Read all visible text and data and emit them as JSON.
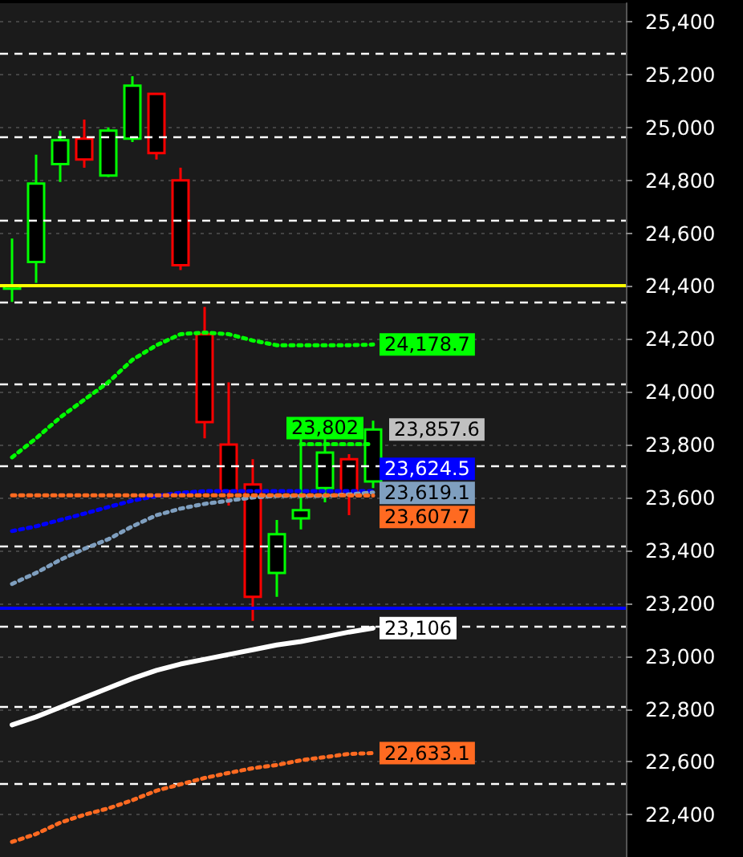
{
  "chart_data": {
    "type": "candlestick",
    "categories": [
      null,
      null,
      null,
      null,
      null,
      null,
      null,
      null,
      null,
      null,
      null,
      null,
      null,
      null,
      null,
      null,
      null,
      null,
      null,
      null,
      null,
      null,
      null,
      null,
      null,
      null
    ],
    "ohlc": [
      [
        24390,
        24580,
        24340,
        24400
      ],
      [
        24491,
        24897,
        24412,
        24788
      ],
      [
        24861,
        24988,
        24794,
        24952
      ],
      [
        24958,
        25030,
        24848,
        24879
      ],
      [
        24818,
        25000,
        24812,
        24988
      ],
      [
        24958,
        25194,
        24945,
        25158
      ],
      [
        25127,
        25127,
        24879,
        24903
      ],
      [
        24800,
        24848,
        24461,
        24479
      ],
      [
        24218,
        24321,
        23824,
        23885
      ],
      [
        23800,
        24036,
        23570,
        23624
      ],
      [
        23649,
        23745,
        23133,
        23224
      ],
      [
        23315,
        23515,
        23224,
        23461
      ],
      [
        23521,
        23824,
        23479,
        23552
      ],
      [
        23636,
        23824,
        23582,
        23770
      ],
      [
        23745,
        23764,
        23533,
        23612
      ],
      [
        23661,
        23891,
        23636,
        23857.6
      ],
      null,
      null,
      null,
      null,
      null,
      null,
      null,
      null,
      null,
      null
    ],
    "colors": [
      "#00ff00",
      "#00ff00",
      "#00ff00",
      "#ff0000",
      "#00ff00",
      "#00ff00",
      "#ff0000",
      "#ff0000",
      "#ff0000",
      "#ff0000",
      "#ff0000",
      "#00ff00",
      "#00ff00",
      "#00ff00",
      "#ff0000",
      "#00ff00",
      null,
      null,
      null,
      null,
      null,
      null,
      null,
      null,
      null,
      null
    ],
    "value_labels": [
      null,
      null,
      null,
      null,
      null,
      null,
      null,
      null,
      null,
      null,
      null,
      null,
      null,
      null,
      null,
      "23,857.6",
      null,
      null,
      null,
      null,
      null,
      null,
      null,
      null,
      null,
      null
    ],
    "series": [
      {
        "type": "line",
        "color": "#00ff00",
        "line_style": "dotted",
        "values": [
          23752,
          23824,
          23903,
          23970,
          24036,
          24121,
          24176,
          24218,
          24224,
          24218,
          24194,
          24176,
          24176,
          24176,
          24176,
          24178.7,
          null,
          null,
          null,
          null,
          null,
          null,
          null,
          null,
          null,
          null
        ],
        "value_labels": [
          null,
          null,
          null,
          null,
          null,
          null,
          null,
          null,
          null,
          null,
          null,
          null,
          null,
          null,
          null,
          "24,178.7",
          null,
          null,
          null,
          null,
          null,
          null,
          null,
          null,
          null,
          null
        ]
      },
      {
        "type": "line",
        "color": "#00ff00",
        "line_style": "dotted",
        "values": [
          null,
          null,
          null,
          null,
          null,
          null,
          null,
          null,
          null,
          null,
          null,
          null,
          23802,
          23802,
          23802,
          23802,
          null,
          null,
          null,
          null,
          null,
          null,
          null,
          null,
          null,
          null
        ],
        "value_labels": [
          null,
          null,
          null,
          null,
          null,
          null,
          null,
          null,
          null,
          null,
          null,
          null,
          null,
          "23,802",
          null,
          null,
          null,
          null,
          null,
          null,
          null,
          null,
          null,
          null,
          null,
          null
        ]
      },
      {
        "type": "line",
        "color": "#0000ff",
        "line_style": "dotted",
        "values": [
          23473,
          23491,
          23515,
          23539,
          23564,
          23588,
          23606,
          23618,
          23624,
          23624,
          23624,
          23624,
          23624,
          23624,
          23624,
          23624.5,
          null,
          null,
          null,
          null,
          null,
          null,
          null,
          null,
          null,
          null
        ],
        "value_labels": [
          null,
          null,
          null,
          null,
          null,
          null,
          null,
          null,
          null,
          null,
          null,
          null,
          null,
          null,
          null,
          "23,624.5",
          null,
          null,
          null,
          null,
          null,
          null,
          null,
          null,
          null,
          null
        ]
      },
      {
        "type": "line",
        "color": "#7f9fbf",
        "line_style": "dotted",
        "values": [
          23273,
          23315,
          23364,
          23406,
          23442,
          23491,
          23533,
          23558,
          23576,
          23588,
          23600,
          23606,
          23606,
          23606,
          23612,
          23619.1,
          null,
          null,
          null,
          null,
          null,
          null,
          null,
          null,
          null,
          null
        ],
        "value_labels": [
          null,
          null,
          null,
          null,
          null,
          null,
          null,
          null,
          null,
          null,
          null,
          null,
          null,
          null,
          null,
          "23,619.1",
          null,
          null,
          null,
          null,
          null,
          null,
          null,
          null,
          null,
          null
        ]
      },
      {
        "type": "line",
        "color": "#ff6a21",
        "line_style": "dotted",
        "values": [
          23608,
          23608,
          23608,
          23608,
          23608,
          23608,
          23608,
          23608,
          23608,
          23608,
          23608,
          23608,
          23608,
          23608,
          23608,
          23607.7,
          null,
          null,
          null,
          null,
          null,
          null,
          null,
          null,
          null,
          null
        ],
        "value_labels": [
          null,
          null,
          null,
          null,
          null,
          null,
          null,
          null,
          null,
          null,
          null,
          null,
          null,
          null,
          null,
          "23,607.7",
          null,
          null,
          null,
          null,
          null,
          null,
          null,
          null,
          null,
          null
        ]
      },
      {
        "type": "line",
        "color": "#ffffff",
        "line_style": "solid",
        "values": [
          22740,
          22770,
          22806,
          22843,
          22879,
          22915,
          22946,
          22970,
          22988,
          23006,
          23024,
          23042,
          23055,
          23073,
          23091,
          23106,
          null,
          null,
          null,
          null,
          null,
          null,
          null,
          null,
          null,
          null
        ],
        "value_labels": [
          null,
          null,
          null,
          null,
          null,
          null,
          null,
          null,
          null,
          null,
          null,
          null,
          null,
          null,
          null,
          "23,106",
          null,
          null,
          null,
          null,
          null,
          null,
          null,
          null,
          null,
          null
        ]
      },
      {
        "type": "line",
        "color": "#ff6a21",
        "line_style": "dotted",
        "values": [
          22297,
          22327,
          22370,
          22400,
          22424,
          22455,
          22491,
          22515,
          22539,
          22558,
          22576,
          22588,
          22606,
          22618,
          22630,
          22633.1,
          null,
          null,
          null,
          null,
          null,
          null,
          null,
          null,
          null,
          null
        ],
        "value_labels": [
          null,
          null,
          null,
          null,
          null,
          null,
          null,
          null,
          null,
          null,
          null,
          null,
          null,
          null,
          null,
          "22,633.1",
          null,
          null,
          null,
          null,
          null,
          null,
          null,
          null,
          null,
          null
        ]
      }
    ],
    "ref_lines": [
      {
        "axis": "y",
        "value": 24400,
        "color": "#ffff00",
        "line_style": "solid"
      },
      {
        "axis": "y",
        "value": 23182,
        "color": "#0000ff",
        "line_style": "solid"
      },
      {
        "axis": "y",
        "value": 25279,
        "color": "#ffffff",
        "line_style": "dashed"
      },
      {
        "axis": "y",
        "value": 24964,
        "color": "#ffffff",
        "line_style": "dashed"
      },
      {
        "axis": "y",
        "value": 24649,
        "color": "#ffffff",
        "line_style": "dashed"
      },
      {
        "axis": "y",
        "value": 24339,
        "color": "#ffffff",
        "line_style": "dashed"
      },
      {
        "axis": "y",
        "value": 24030,
        "color": "#ffffff",
        "line_style": "dashed"
      },
      {
        "axis": "y",
        "value": 23721,
        "color": "#ffffff",
        "line_style": "dashed"
      },
      {
        "axis": "y",
        "value": 23418,
        "color": "#ffffff",
        "line_style": "dashed"
      },
      {
        "axis": "y",
        "value": 23115,
        "color": "#ffffff",
        "line_style": "dashed"
      },
      {
        "axis": "y",
        "value": 22812,
        "color": "#ffffff",
        "line_style": "dashed"
      },
      {
        "axis": "y",
        "value": 22515,
        "color": "#ffffff",
        "line_style": "dashed"
      }
    ],
    "ylim": [
      22240,
      25470
    ],
    "yticks": [
      {
        "value": 22400,
        "label": "22,400"
      },
      {
        "value": 22600,
        "label": "22,600"
      },
      {
        "value": 22800,
        "label": "22,800"
      },
      {
        "value": 23000,
        "label": "23,000"
      },
      {
        "value": 23200,
        "label": "23,200"
      },
      {
        "value": 23400,
        "label": "23,400"
      },
      {
        "value": 23600,
        "label": "23,600"
      },
      {
        "value": 23800,
        "label": "23,800"
      },
      {
        "value": 24000,
        "label": "24,000"
      },
      {
        "value": 24200,
        "label": "24,200"
      },
      {
        "value": 24400,
        "label": "24,400"
      },
      {
        "value": 24600,
        "label": "24,600"
      },
      {
        "value": 24800,
        "label": "24,800"
      },
      {
        "value": 25000,
        "label": "25,000"
      },
      {
        "value": 25200,
        "label": "25,200"
      },
      {
        "value": 25400,
        "label": "25,400"
      }
    ],
    "grid": "y",
    "tick_labels": "y",
    "marker": "none"
  }
}
